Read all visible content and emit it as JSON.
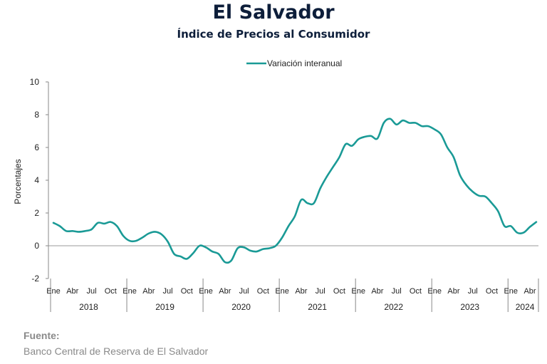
{
  "header": {
    "title": "El Salvador",
    "subtitle": "Índice de Precios al Consumidor"
  },
  "source": {
    "label": "Fuente:",
    "text": "Banco Central de Reserva de El Salvador"
  },
  "chart_data": {
    "type": "line",
    "ylabel": "Porcentajes",
    "ylim": [
      -2,
      10
    ],
    "yticks": [
      -2,
      0,
      2,
      4,
      6,
      8,
      10
    ],
    "legend": {
      "placement": "top-center"
    },
    "series_color": "#1a9a96",
    "month_tick_labels": [
      "Ene",
      "Abr",
      "Jul",
      "Oct"
    ],
    "years": [
      "2018",
      "2019",
      "2020",
      "2021",
      "2022",
      "2023",
      "2024"
    ],
    "x_start": "2018-01",
    "series": [
      {
        "name": "Variación interanual",
        "values": [
          1.4,
          1.2,
          0.9,
          0.9,
          0.85,
          0.9,
          1.0,
          1.4,
          1.35,
          1.45,
          1.2,
          0.6,
          0.3,
          0.3,
          0.5,
          0.75,
          0.85,
          0.7,
          0.25,
          -0.5,
          -0.65,
          -0.8,
          -0.45,
          0.0,
          -0.1,
          -0.35,
          -0.5,
          -1.0,
          -0.9,
          -0.15,
          -0.1,
          -0.3,
          -0.35,
          -0.2,
          -0.15,
          0.0,
          0.5,
          1.2,
          1.8,
          2.8,
          2.6,
          2.6,
          3.5,
          4.2,
          4.8,
          5.4,
          6.2,
          6.1,
          6.5,
          6.65,
          6.7,
          6.55,
          7.5,
          7.75,
          7.4,
          7.65,
          7.5,
          7.5,
          7.3,
          7.3,
          7.1,
          6.8,
          6.0,
          5.4,
          4.3,
          3.7,
          3.3,
          3.05,
          3.0,
          2.6,
          2.1,
          1.2,
          1.2,
          0.8,
          0.8,
          1.15,
          1.45
        ]
      }
    ]
  }
}
